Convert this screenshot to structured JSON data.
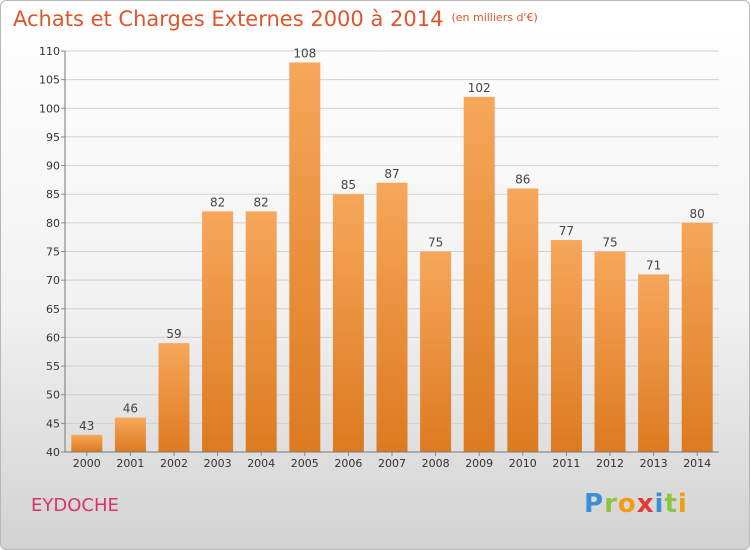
{
  "header": {
    "title": "Achats et Charges Externes 2000 à 2014",
    "subtitle": "(en milliers d'€)"
  },
  "footer": {
    "commune": "EYDOCHE",
    "logo_letters": [
      "P",
      "r",
      "o",
      "x",
      "i",
      "t",
      "i"
    ],
    "logo_colors": [
      "#3a8fd6",
      "#8cc63f",
      "#f39c12",
      "#e53935",
      "#3a8fd6",
      "#8cc63f",
      "#f39c12"
    ]
  },
  "colors": {
    "bar_light": "#f6a75a",
    "bar_dark": "#dd7a20",
    "grid": "#d0d0d0",
    "axis_text": "#333333",
    "value_text": "#444444"
  },
  "chart_data": {
    "type": "bar",
    "categories": [
      "2000",
      "2001",
      "2002",
      "2003",
      "2004",
      "2005",
      "2006",
      "2007",
      "2008",
      "2009",
      "2010",
      "2011",
      "2012",
      "2013",
      "2014"
    ],
    "values": [
      43,
      46,
      59,
      82,
      82,
      108,
      85,
      87,
      75,
      102,
      86,
      77,
      75,
      71,
      80
    ],
    "ylim": [
      40,
      110
    ],
    "yticks": [
      40,
      45,
      50,
      55,
      60,
      65,
      70,
      75,
      80,
      85,
      90,
      95,
      100,
      105,
      110
    ],
    "title": "Achats et Charges Externes 2000 à 2014",
    "subtitle": "(en milliers d'€)",
    "xlabel": "",
    "ylabel": "",
    "grid": true,
    "data_labels": true
  }
}
